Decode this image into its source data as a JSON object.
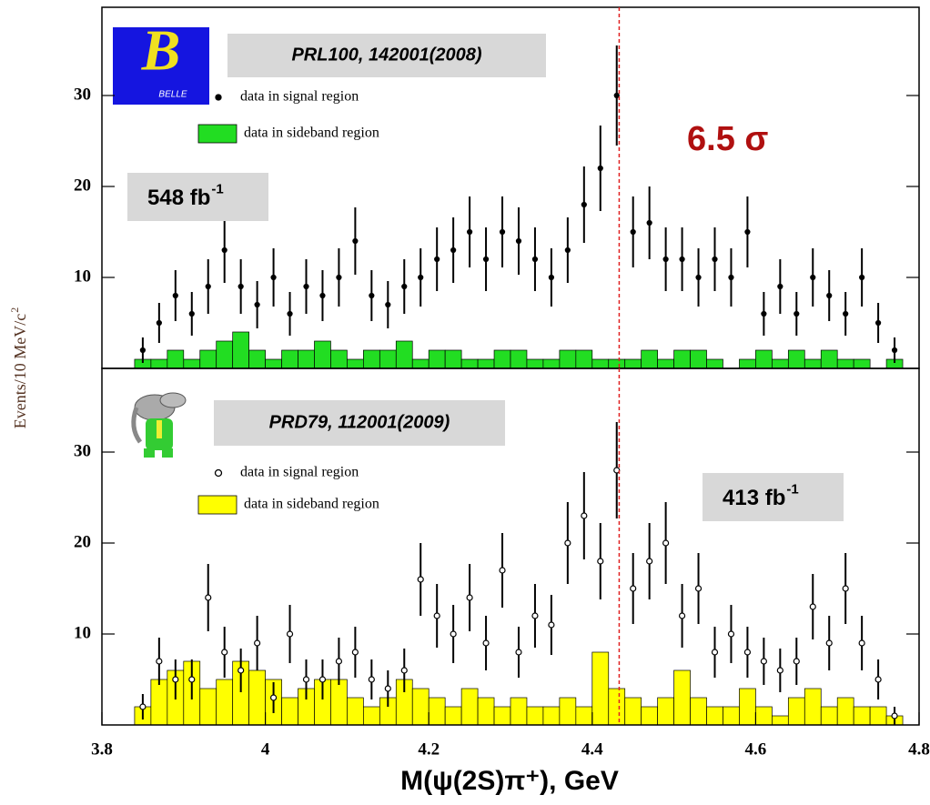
{
  "chart_data": [
    {
      "type": "errorbar",
      "title": "PRL100, 142001(2008)",
      "logo_letter": "B",
      "logo_text": "BELLE",
      "luminosity": "548 fb",
      "luminosity_sup": "-1",
      "significance": "6.5 σ",
      "significance_color": "#b01010",
      "ylabel": "Events/10 MeV/c",
      "ylabel_sup": "2",
      "xlim": [
        3.8,
        4.8
      ],
      "ylim": [
        0,
        39.7
      ],
      "yticks": [
        10,
        20,
        30
      ],
      "reference_x": 4.433,
      "reference_color": "#e02020",
      "signal": {
        "name": "data in signal region",
        "marker": "filled",
        "x": [
          3.85,
          3.87,
          3.89,
          3.91,
          3.93,
          3.95,
          3.97,
          3.99,
          4.01,
          4.03,
          4.05,
          4.07,
          4.09,
          4.11,
          4.13,
          4.15,
          4.17,
          4.19,
          4.21,
          4.23,
          4.25,
          4.27,
          4.29,
          4.31,
          4.33,
          4.35,
          4.37,
          4.39,
          4.41,
          4.43,
          4.45,
          4.47,
          4.49,
          4.51,
          4.53,
          4.55,
          4.57,
          4.59,
          4.61,
          4.63,
          4.65,
          4.67,
          4.69,
          4.71,
          4.73,
          4.75,
          4.77
        ],
        "values": [
          2,
          5,
          8,
          6,
          9,
          13,
          9,
          7,
          10,
          6,
          9,
          8,
          10,
          14,
          8,
          7,
          9,
          10,
          12,
          13,
          15,
          12,
          15,
          14,
          12,
          10,
          13,
          18,
          22,
          30,
          15,
          16,
          12,
          12,
          10,
          12,
          10,
          15,
          6,
          9,
          6,
          10,
          8,
          6,
          10,
          5,
          2
        ],
        "errors": [
          1.4,
          2.2,
          2.8,
          2.4,
          3,
          3.6,
          3,
          2.6,
          3.2,
          2.4,
          3,
          2.8,
          3.2,
          3.7,
          2.8,
          2.6,
          3,
          3.2,
          3.5,
          3.6,
          3.9,
          3.5,
          3.9,
          3.7,
          3.5,
          3.2,
          3.6,
          4.2,
          4.7,
          5.5,
          3.9,
          4,
          3.5,
          3.5,
          3.2,
          3.5,
          3.2,
          3.9,
          2.4,
          3,
          2.4,
          3.2,
          2.8,
          2.4,
          3.2,
          2.2,
          1.4
        ]
      },
      "sideband": {
        "name": "data in sideband region",
        "color": "#22dd22",
        "bins": [
          3.84,
          3.86,
          3.88,
          3.9,
          3.92,
          3.94,
          3.96,
          3.98,
          4,
          4.02,
          4.04,
          4.06,
          4.08,
          4.1,
          4.12,
          4.14,
          4.16,
          4.18,
          4.2,
          4.22,
          4.24,
          4.26,
          4.28,
          4.3,
          4.32,
          4.34,
          4.36,
          4.38,
          4.4,
          4.42,
          4.44,
          4.46,
          4.48,
          4.5,
          4.52,
          4.54,
          4.56,
          4.58,
          4.6,
          4.62,
          4.64,
          4.66,
          4.68,
          4.7,
          4.72,
          4.74,
          4.76,
          4.78
        ],
        "counts": [
          1,
          1,
          2,
          1,
          2,
          3,
          4,
          2,
          1,
          2,
          2,
          3,
          2,
          1,
          2,
          2,
          3,
          1,
          2,
          2,
          1,
          1,
          2,
          2,
          1,
          1,
          2,
          2,
          1,
          1,
          1,
          2,
          1,
          2,
          2,
          1,
          0,
          1,
          2,
          1,
          2,
          1,
          2,
          1,
          1,
          0,
          1
        ]
      }
    },
    {
      "type": "errorbar",
      "title": "PRD79, 112001(2009)",
      "luminosity": "413 fb",
      "luminosity_sup": "-1",
      "xlabel": "M(ψ(2S)π⁺), GeV",
      "xlim": [
        3.8,
        4.8
      ],
      "xticks": [
        3.8,
        4,
        4.2,
        4.4,
        4.6,
        4.8
      ],
      "ylim": [
        0,
        39.2
      ],
      "yticks": [
        10,
        20,
        30
      ],
      "reference_x": 4.433,
      "reference_color": "#e02020",
      "signal": {
        "name": "data in signal region",
        "marker": "open",
        "x": [
          3.85,
          3.87,
          3.89,
          3.91,
          3.93,
          3.95,
          3.97,
          3.99,
          4.01,
          4.03,
          4.05,
          4.07,
          4.09,
          4.11,
          4.13,
          4.15,
          4.17,
          4.19,
          4.21,
          4.23,
          4.25,
          4.27,
          4.29,
          4.31,
          4.33,
          4.35,
          4.37,
          4.39,
          4.41,
          4.43,
          4.45,
          4.47,
          4.49,
          4.51,
          4.53,
          4.55,
          4.57,
          4.59,
          4.61,
          4.63,
          4.65,
          4.67,
          4.69,
          4.71,
          4.73,
          4.75,
          4.77
        ],
        "values": [
          2,
          7,
          5,
          5,
          14,
          8,
          6,
          9,
          3,
          10,
          5,
          5,
          7,
          8,
          5,
          4,
          6,
          16,
          12,
          10,
          14,
          9,
          17,
          8,
          12,
          11,
          20,
          23,
          18,
          28,
          15,
          18,
          20,
          12,
          15,
          8,
          10,
          8,
          7,
          6,
          7,
          13,
          9,
          15,
          9,
          5,
          1
        ],
        "errors": [
          1.4,
          2.6,
          2.2,
          2.2,
          3.7,
          2.8,
          2.4,
          3,
          1.7,
          3.2,
          2.2,
          2.2,
          2.6,
          2.8,
          2.2,
          2,
          2.4,
          4,
          3.5,
          3.2,
          3.7,
          3,
          4.1,
          2.8,
          3.5,
          3.3,
          4.5,
          4.8,
          4.2,
          5.3,
          3.9,
          4.2,
          4.5,
          3.5,
          3.9,
          2.8,
          3.2,
          2.8,
          2.6,
          2.4,
          2.6,
          3.6,
          3,
          3.9,
          3,
          2.2,
          1
        ]
      },
      "sideband": {
        "name": "data in sideband region",
        "color": "#ffff00",
        "bins": [
          3.84,
          3.86,
          3.88,
          3.9,
          3.92,
          3.94,
          3.96,
          3.98,
          4,
          4.02,
          4.04,
          4.06,
          4.08,
          4.1,
          4.12,
          4.14,
          4.16,
          4.18,
          4.2,
          4.22,
          4.24,
          4.26,
          4.28,
          4.3,
          4.32,
          4.34,
          4.36,
          4.38,
          4.4,
          4.42,
          4.44,
          4.46,
          4.48,
          4.5,
          4.52,
          4.54,
          4.56,
          4.58,
          4.6,
          4.62,
          4.64,
          4.66,
          4.68,
          4.7,
          4.72,
          4.74,
          4.76,
          4.78
        ],
        "counts": [
          2,
          5,
          6,
          7,
          4,
          5,
          7,
          6,
          5,
          3,
          4,
          5,
          5,
          3,
          2,
          3,
          5,
          4,
          3,
          2,
          4,
          3,
          2,
          3,
          2,
          2,
          3,
          2,
          8,
          4,
          3,
          2,
          3,
          6,
          3,
          2,
          2,
          4,
          2,
          1,
          3,
          4,
          2,
          3,
          2,
          2,
          1
        ]
      }
    }
  ]
}
